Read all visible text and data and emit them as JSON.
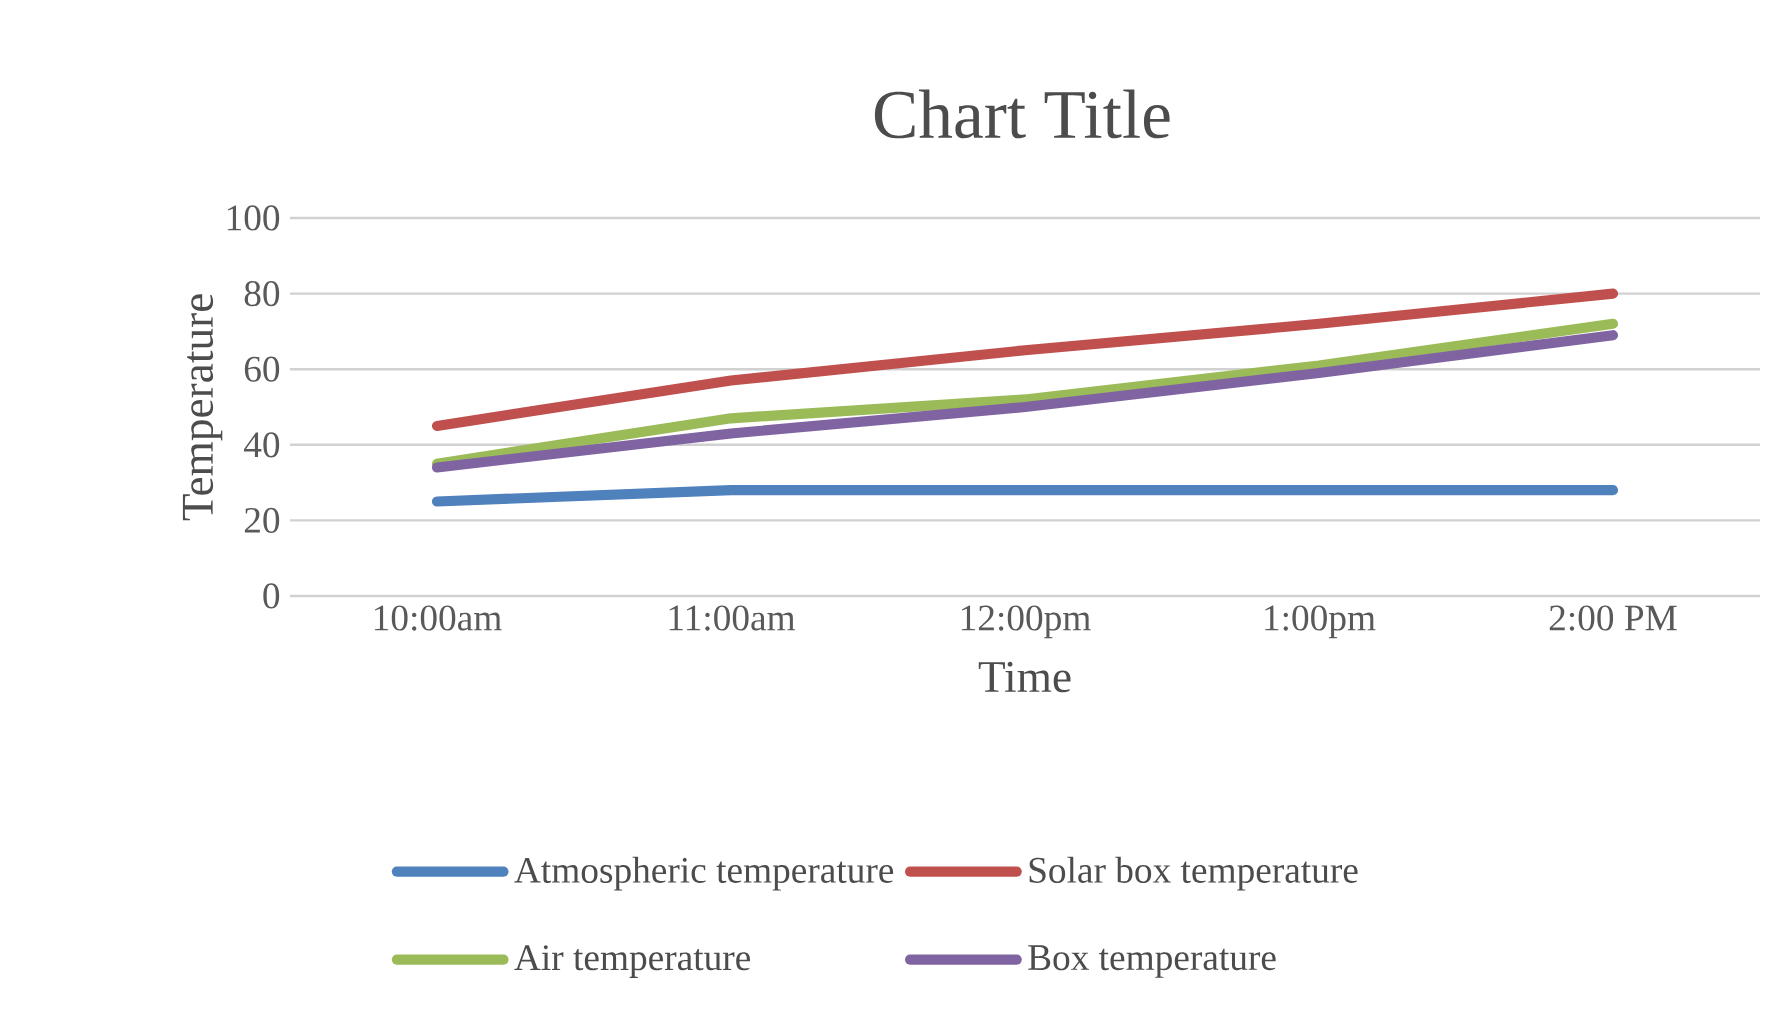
{
  "chart_data": {
    "type": "line",
    "title": "Chart Title",
    "xlabel": "Time",
    "ylabel": "Temperature",
    "categories": [
      "10:00am",
      "11:00am",
      "12:00pm",
      "1:00pm",
      "2:00 PM"
    ],
    "series": [
      {
        "name": "Atmospheric temperature",
        "color": "#4f81bd",
        "values": [
          25,
          28,
          28,
          28,
          28
        ]
      },
      {
        "name": "Solar box temperature",
        "color": "#c0504d",
        "values": [
          45,
          57,
          65,
          72,
          80
        ]
      },
      {
        "name": "Air temperature",
        "color": "#9bbb59",
        "values": [
          35,
          47,
          52,
          61,
          72
        ]
      },
      {
        "name": "Box temperature",
        "color": "#8064a2",
        "values": [
          34,
          43,
          50,
          59,
          69
        ]
      }
    ],
    "ylim": [
      0,
      100
    ],
    "yticks": [
      0,
      20,
      40,
      60,
      80,
      100
    ],
    "grid": "y",
    "legend": "bottom"
  }
}
